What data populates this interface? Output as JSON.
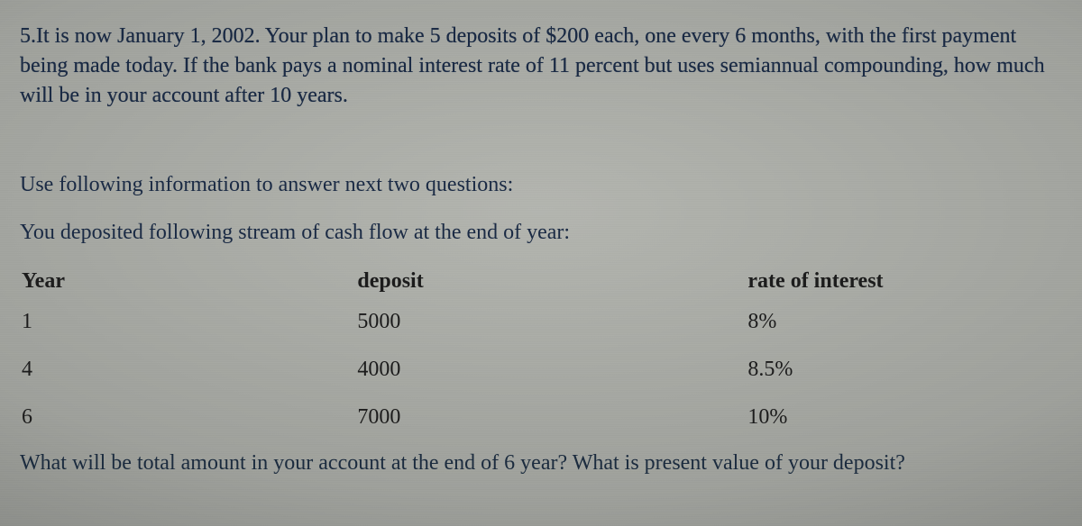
{
  "document": {
    "background_gradient_center": "#b4b6b0",
    "background_gradient_edge": "#5e605d",
    "font_family": "Times New Roman",
    "base_font_size_pt": 18,
    "body_text_color": "#1a2a44",
    "table_text_color": "#1c1c1c"
  },
  "question5": {
    "text": "5.It is now January 1, 2002. Your plan to make 5 deposits of $200 each,  one every 6 months, with the first payment being made today. If the bank pays a nominal interest rate of 11 percent but uses semiannual compounding, how much will be  in your account after 10 years."
  },
  "cashflow_section": {
    "instruction_line1": "Use following information to answer next two questions:",
    "instruction_line2": "You deposited following stream of cash flow at the end of year:",
    "table": {
      "type": "table",
      "columns": [
        "Year",
        "deposit",
        "rate of interest"
      ],
      "rows": [
        [
          "1",
          "5000",
          "8%"
        ],
        [
          "4",
          "4000",
          "8.5%"
        ],
        [
          "6",
          "7000",
          "10%"
        ]
      ],
      "col_align": [
        "left",
        "left",
        "left"
      ],
      "header_fontweight": "bold"
    },
    "followup_question": "What will be total amount in your account at the end of 6 year? What is present value of your deposit?"
  }
}
